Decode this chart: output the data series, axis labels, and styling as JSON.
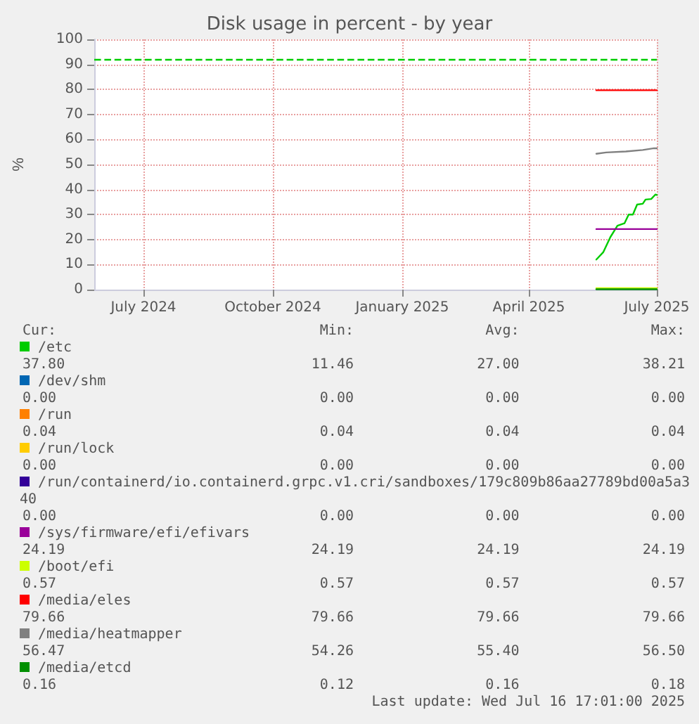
{
  "chart_data": {
    "type": "line",
    "title": "Disk usage in percent - by year",
    "ylabel": "%",
    "xlim": [
      "2024-06-11",
      "2025-07-16"
    ],
    "xticks": [
      {
        "value": "2024-07-16",
        "label": "July 2024"
      },
      {
        "value": "2024-10-16",
        "label": "October 2024"
      },
      {
        "value": "2025-01-16",
        "label": "January 2025"
      },
      {
        "value": "2025-04-16",
        "label": "April 2025"
      },
      {
        "value": "2025-07-16",
        "label": "July 2025"
      }
    ],
    "ylim": [
      0,
      100
    ],
    "yticks": [
      0,
      10,
      20,
      30,
      40,
      50,
      60,
      70,
      80,
      90,
      100
    ],
    "grid": true,
    "legend": "bottom",
    "marker": "none",
    "line_style": "solid",
    "ref_lines": [
      {
        "axis": "y",
        "value": 92,
        "color": "#00cc00",
        "line_style": "dashed"
      }
    ],
    "series": [
      {
        "name": "/etc",
        "color": "#00cc00",
        "x": [
          "2025-06-03",
          "2025-06-08",
          "2025-06-13",
          "2025-06-18",
          "2025-06-23",
          "2025-06-26",
          "2025-06-29",
          "2025-07-02",
          "2025-07-06",
          "2025-07-08",
          "2025-07-12",
          "2025-07-15",
          "2025-07-16"
        ],
        "values": [
          12,
          15,
          21,
          25.5,
          26.5,
          30,
          30,
          34,
          34.3,
          36,
          36.2,
          38,
          37.8
        ]
      },
      {
        "name": "/dev/shm",
        "color": "#0066b3"
      },
      {
        "name": "/run",
        "color": "#ff8000"
      },
      {
        "name": "/run/lock",
        "color": "#ffcc00"
      },
      {
        "name": "/run/containerd/io.containerd.grpc.v1.cri/sandboxes/179c809b86aa27789bd00a5a340",
        "color": "#330099"
      },
      {
        "name": "/sys/firmware/efi/efivars",
        "color": "#990099",
        "x": [
          "2025-06-03",
          "2025-07-16"
        ],
        "values": [
          24.19,
          24.19
        ]
      },
      {
        "name": "/boot/efi",
        "color": "#ccff00",
        "x": [
          "2025-06-03",
          "2025-07-16"
        ],
        "values": [
          0.57,
          0.57
        ]
      },
      {
        "name": "/media/eles",
        "color": "#ff0000",
        "x": [
          "2025-06-03",
          "2025-07-16"
        ],
        "values": [
          79.66,
          79.66
        ]
      },
      {
        "name": "/media/heatmapper",
        "color": "#808080",
        "x": [
          "2025-06-03",
          "2025-06-10",
          "2025-06-24",
          "2025-07-06",
          "2025-07-14",
          "2025-07-16"
        ],
        "values": [
          54.3,
          54.8,
          55.2,
          55.8,
          56.5,
          56.47
        ]
      },
      {
        "name": "/media/etcd",
        "color": "#008f00",
        "x": [
          "2025-06-03",
          "2025-07-16"
        ],
        "values": [
          0.16,
          0.16
        ]
      }
    ],
    "annotations": [
      "Cur:",
      "Min:",
      "Avg:",
      "Max:",
      "37.80",
      "11.46",
      "27.00",
      "38.21",
      "0.00",
      "0.00",
      "0.00",
      "0.00",
      "0.04",
      "0.04",
      "0.04",
      "0.04",
      "0.00",
      "0.00",
      "0.00",
      "0.00",
      "0.00",
      "0.00",
      "0.00",
      "0.00",
      "24.19",
      "24.19",
      "24.19",
      "24.19",
      "0.57",
      "0.57",
      "0.57",
      "0.57",
      "79.66",
      "79.66",
      "79.66",
      "79.66",
      "56.47",
      "54.26",
      "55.40",
      "56.50",
      "0.16",
      "0.12",
      "0.16",
      "0.18",
      "Last update: Wed Jul 16 17:01:00 2025"
    ]
  }
}
